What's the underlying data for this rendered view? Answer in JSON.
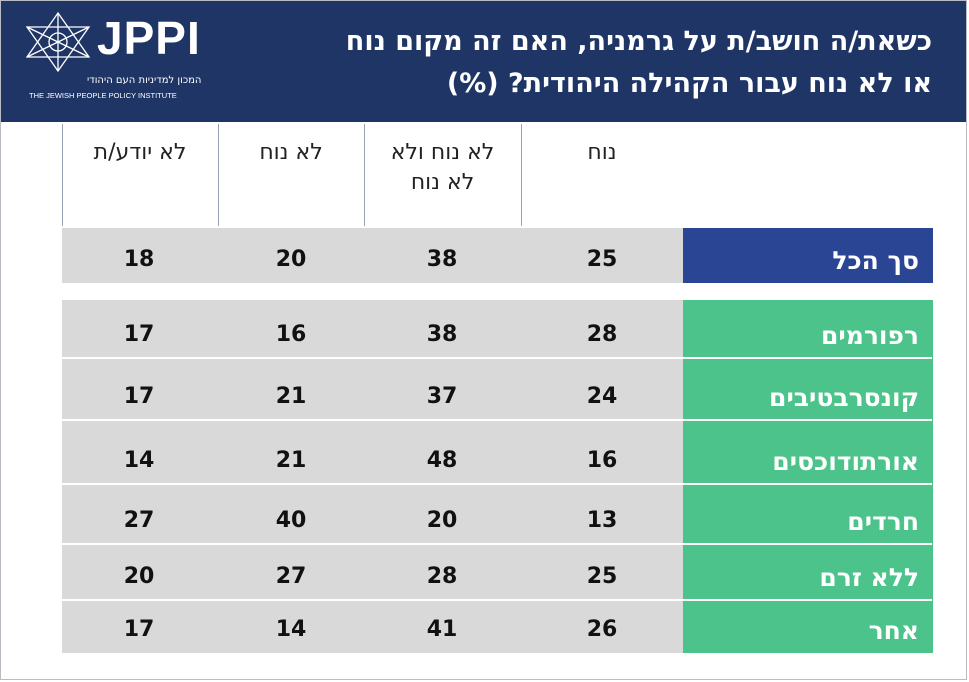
{
  "header": {
    "title_line1": "כשאת/ה חושב/ת על גרמניה, האם זה מקום נוח",
    "title_line2": "או לא נוח עבור הקהילה היהודית? (%)",
    "logo_text": "JPPI",
    "logo_sub_he": "המכון למדיניות העם היהודי",
    "logo_sub_en": "THE JEWISH PEOPLE POLICY INSTITUTE"
  },
  "colors": {
    "header_bg": "#1f3566",
    "total_label_bg": "#2a4593",
    "group_label_bg": "#4cc38a",
    "cell_bg": "#d9d9d9"
  },
  "chart_data": {
    "type": "table",
    "title": "כשאת/ה חושב/ת על גרמניה, האם זה מקום נוח או לא נוח עבור הקהילה היהודית? (%)",
    "columns": [
      "נוח",
      "לא נוח ולא לא נוח",
      "לא נוח",
      "לא יודע/ת"
    ],
    "column_lines": [
      [
        "נוח"
      ],
      [
        "לא נוח ולא",
        "לא נוח"
      ],
      [
        "לא נוח"
      ],
      [
        "לא יודע/ת"
      ]
    ],
    "total": {
      "label": "סך הכל",
      "values": [
        25,
        38,
        20,
        18
      ]
    },
    "rows": [
      {
        "label": "רפורמים",
        "values": [
          28,
          38,
          16,
          17
        ]
      },
      {
        "label": "קונסרבטיבים",
        "values": [
          24,
          37,
          21,
          17
        ]
      },
      {
        "label": "אורתודוכסים",
        "values": [
          16,
          48,
          21,
          14
        ]
      },
      {
        "label": "חרדים",
        "values": [
          13,
          20,
          40,
          27
        ]
      },
      {
        "label": "ללא זרם",
        "values": [
          25,
          28,
          27,
          20
        ]
      },
      {
        "label": "אחר",
        "values": [
          26,
          41,
          14,
          17
        ]
      }
    ]
  }
}
